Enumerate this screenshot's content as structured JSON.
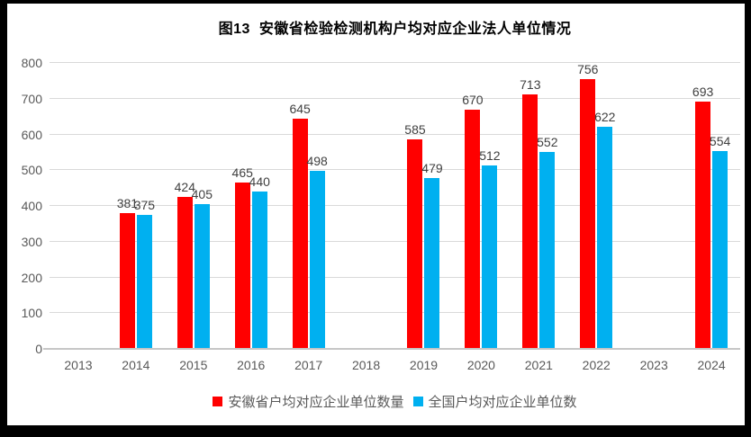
{
  "title": "图13  安徽省检验检测机构户均对应企业法人单位情况",
  "chart_data": {
    "type": "bar",
    "title": "图13  安徽省检验检测机构户均对应企业法人单位情况",
    "categories": [
      "2013",
      "2014",
      "2015",
      "2016",
      "2017",
      "2018",
      "2019",
      "2020",
      "2021",
      "2022",
      "2023",
      "2024"
    ],
    "series": [
      {
        "name": "安徽省户均对应企业单位数量",
        "color": "#ff0000",
        "values": [
          null,
          381,
          424,
          465,
          645,
          null,
          585,
          670,
          713,
          756,
          null,
          693
        ]
      },
      {
        "name": "全国户均对应企业单位数",
        "color": "#00b0f0",
        "values": [
          null,
          375,
          405,
          440,
          498,
          null,
          479,
          512,
          552,
          622,
          null,
          554
        ]
      }
    ],
    "xlabel": "",
    "ylabel": "",
    "ylim": [
      0,
      800
    ],
    "ytick_step": 100,
    "yticks": [
      0,
      100,
      200,
      300,
      400,
      500,
      600,
      700,
      800
    ],
    "grid": "horizontal",
    "legend_position": "bottom",
    "data_labels": "outside-end"
  },
  "colors": {
    "frame": "#000000",
    "background": "#ffffff",
    "gridline": "#d9d9d9",
    "axis_line": "#c6c6c6",
    "tick_label": "#595959",
    "data_label": "#404040",
    "title": "#000000",
    "series_anhui": "#ff0000",
    "series_national": "#00b0f0"
  }
}
